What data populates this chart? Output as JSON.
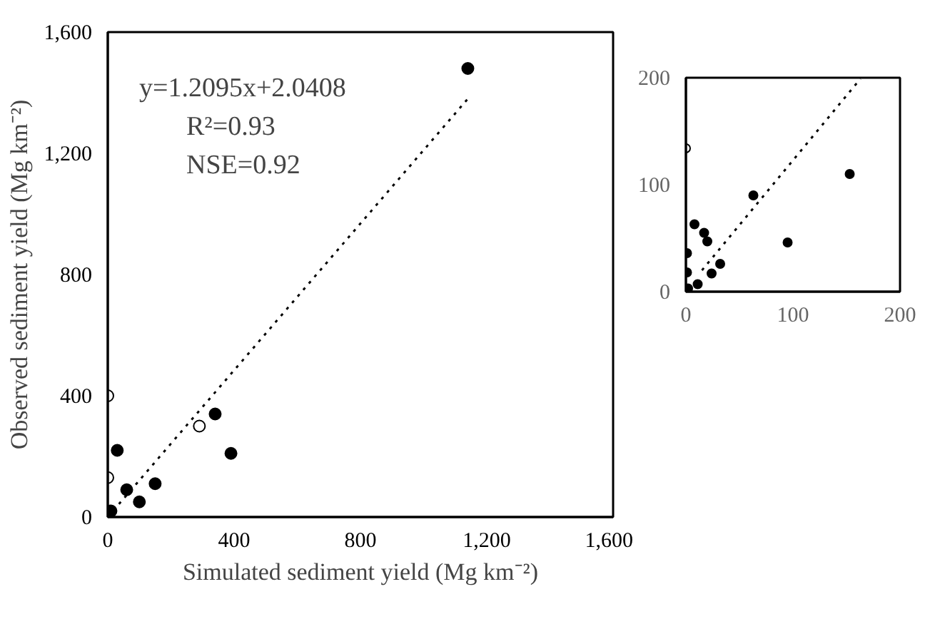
{
  "chart_data": [
    {
      "type": "scatter",
      "xlabel": "Simulated sediment yield (Mg km⁻²)",
      "ylabel": "Observed sediment yield (Mg km⁻²)",
      "xlim": [
        0,
        1600
      ],
      "ylim": [
        0,
        1600
      ],
      "xticks": [
        0,
        400,
        800,
        {
          "value": 1200,
          "label": "1,200"
        },
        {
          "value": 1600,
          "label": "1,600"
        }
      ],
      "yticks": [
        0,
        400,
        800,
        {
          "value": 1200,
          "label": "1,200"
        },
        {
          "value": 1600,
          "label": "1,600"
        }
      ],
      "grid": false,
      "annotations": [
        "y=1.2095x+2.0408",
        "R²=0.93",
        "NSE=0.92"
      ],
      "series": [
        {
          "color": "#000000",
          "marker": "circle",
          "x": [
            1140,
            340,
            390,
            30,
            150,
            60,
            100,
            10
          ],
          "values": [
            1480,
            340,
            210,
            220,
            110,
            90,
            50,
            20
          ]
        },
        {
          "color": "#000000",
          "marker": "circle_open",
          "x": [
            0,
            290,
            0
          ],
          "values": [
            400,
            300,
            130
          ]
        },
        {
          "type": "line",
          "color": "#000000",
          "line_style": "dotted",
          "x": [
            0,
            1140
          ],
          "values": [
            0,
            1380
          ]
        }
      ]
    },
    {
      "type": "scatter",
      "xlim": [
        0,
        200
      ],
      "ylim": [
        0,
        200
      ],
      "xticks": [
        0,
        100,
        200
      ],
      "yticks": [
        0,
        100,
        200
      ],
      "grid": false,
      "series": [
        {
          "color": "#000000",
          "marker": "circle",
          "x": [
            153,
            63,
            95,
            8,
            17,
            20,
            1,
            32,
            24,
            11,
            1,
            2
          ],
          "values": [
            110,
            90,
            46,
            63,
            55,
            47,
            36,
            26,
            17,
            7,
            18,
            3
          ]
        },
        {
          "color": "#000000",
          "marker": "circle_open",
          "x": [
            0
          ],
          "values": [
            134
          ]
        },
        {
          "type": "line",
          "color": "#000000",
          "line_style": "dotted",
          "x": [
            15,
            163
          ],
          "values": [
            20,
            199
          ]
        }
      ]
    }
  ]
}
